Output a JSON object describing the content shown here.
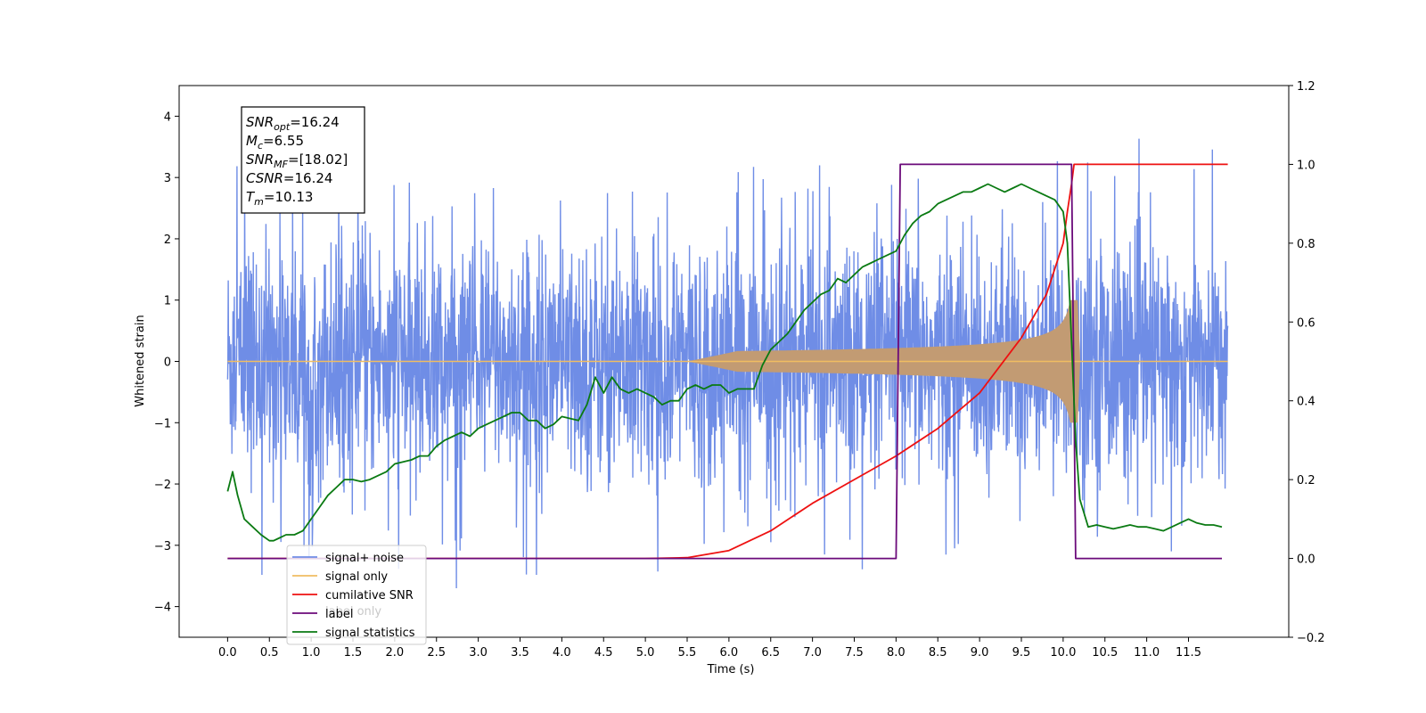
{
  "chart_data": {
    "type": "line",
    "xlabel": "Time (s)",
    "ylabel": "Whitened strain",
    "xlim": [
      -0.58,
      12.7
    ],
    "ylim": [
      -4.5,
      4.5
    ],
    "y2lim": [
      -0.2,
      1.2
    ],
    "x_ticks": [
      "0.0",
      "0.5",
      "1.0",
      "1.5",
      "2.0",
      "2.5",
      "3.0",
      "3.5",
      "4.0",
      "4.5",
      "5.0",
      "5.5",
      "6.0",
      "6.5",
      "7.0",
      "7.5",
      "8.0",
      "8.5",
      "9.0",
      "9.5",
      "10.0",
      "10.5",
      "11.0",
      "11.5"
    ],
    "y_ticks": [
      "4",
      "3",
      "2",
      "1",
      "0",
      "−1",
      "−2",
      "−3",
      "−4"
    ],
    "y2_ticks": [
      "1.2",
      "1.0",
      "0.8",
      "0.6",
      "0.4",
      "0.2",
      "0.0",
      "−0.2"
    ],
    "annotation": [
      {
        "sym": "SNR",
        "sub": "opt",
        "value": "=16.24"
      },
      {
        "sym": "M",
        "sub": "c",
        "value": "=6.55"
      },
      {
        "sym": "SNR",
        "sub": "MF",
        "value": "=[18.02]"
      },
      {
        "sym": "CSNR",
        "sub": "",
        "value": "=16.24"
      },
      {
        "sym": "T",
        "sub": "m",
        "value": "=10.13"
      }
    ],
    "legend": [
      "signal+ noise",
      "signal only",
      "cumilative SNR",
      "label",
      "signal statistics"
    ],
    "legend_ghost": "label only",
    "colors": {
      "signal_noise": "#6f8de6",
      "signal_only": "#f0bd62",
      "signal_only_overlap": "#c29b73",
      "cumulative_snr": "#ee1111",
      "label": "#6b0a7a",
      "statistics": "#0a7a12",
      "ghost_text": "#c8c8c8"
    },
    "signal_noise": {
      "x_range": [
        0.0,
        11.97
      ],
      "sigma": 1.0,
      "typical_peak": 2.7,
      "max": 4.05,
      "min": -3.7
    },
    "signal_only": {
      "x_range": [
        0.0,
        11.97
      ],
      "onset": 5.5,
      "merger": 10.13,
      "peak_amplitude": 1.0
    },
    "cumulative_snr": {
      "axis": "right",
      "x": [
        0.0,
        5.0,
        5.5,
        6.0,
        6.5,
        7.0,
        7.5,
        8.0,
        8.5,
        9.0,
        9.5,
        9.8,
        10.0,
        10.05,
        10.1,
        10.13,
        11.97
      ],
      "y": [
        0.0,
        0.0,
        0.002,
        0.02,
        0.07,
        0.14,
        0.2,
        0.26,
        0.33,
        0.42,
        0.56,
        0.67,
        0.8,
        0.88,
        0.95,
        1.0,
        1.0
      ]
    },
    "label_series": {
      "axis": "right",
      "x": [
        0.0,
        8.0,
        8.05,
        10.1,
        10.15,
        11.9
      ],
      "y": [
        0.0,
        0.0,
        1.0,
        1.0,
        0.0,
        0.0
      ]
    },
    "signal_statistics": {
      "axis": "right",
      "x": [
        0.0,
        0.06,
        0.12,
        0.2,
        0.3,
        0.4,
        0.5,
        0.55,
        0.6,
        0.7,
        0.8,
        0.9,
        1.0,
        1.1,
        1.2,
        1.3,
        1.4,
        1.5,
        1.6,
        1.7,
        1.8,
        1.9,
        2.0,
        2.1,
        2.2,
        2.3,
        2.4,
        2.5,
        2.6,
        2.7,
        2.8,
        2.9,
        3.0,
        3.1,
        3.2,
        3.3,
        3.4,
        3.5,
        3.6,
        3.7,
        3.8,
        3.9,
        4.0,
        4.1,
        4.2,
        4.3,
        4.4,
        4.5,
        4.6,
        4.7,
        4.8,
        4.9,
        5.0,
        5.1,
        5.2,
        5.3,
        5.4,
        5.5,
        5.6,
        5.7,
        5.8,
        5.9,
        6.0,
        6.1,
        6.2,
        6.3,
        6.4,
        6.5,
        6.6,
        6.7,
        6.8,
        6.9,
        7.0,
        7.1,
        7.2,
        7.3,
        7.4,
        7.5,
        7.6,
        7.7,
        7.8,
        7.9,
        8.0,
        8.1,
        8.2,
        8.3,
        8.4,
        8.5,
        8.6,
        8.7,
        8.8,
        8.9,
        9.0,
        9.1,
        9.2,
        9.3,
        9.4,
        9.5,
        9.6,
        9.7,
        9.8,
        9.9,
        10.0,
        10.05,
        10.1,
        10.15,
        10.2,
        10.3,
        10.4,
        10.5,
        10.6,
        10.7,
        10.8,
        10.9,
        11.0,
        11.1,
        11.2,
        11.3,
        11.4,
        11.5,
        11.6,
        11.7,
        11.8,
        11.9
      ],
      "y": [
        0.17,
        0.22,
        0.16,
        0.1,
        0.08,
        0.06,
        0.045,
        0.045,
        0.05,
        0.06,
        0.06,
        0.07,
        0.1,
        0.13,
        0.16,
        0.18,
        0.2,
        0.2,
        0.195,
        0.2,
        0.21,
        0.22,
        0.24,
        0.245,
        0.25,
        0.26,
        0.26,
        0.285,
        0.3,
        0.31,
        0.32,
        0.31,
        0.33,
        0.34,
        0.35,
        0.36,
        0.37,
        0.37,
        0.35,
        0.35,
        0.33,
        0.34,
        0.36,
        0.355,
        0.35,
        0.39,
        0.46,
        0.42,
        0.46,
        0.43,
        0.42,
        0.43,
        0.42,
        0.41,
        0.39,
        0.4,
        0.4,
        0.43,
        0.44,
        0.43,
        0.44,
        0.44,
        0.42,
        0.43,
        0.43,
        0.43,
        0.49,
        0.53,
        0.55,
        0.57,
        0.6,
        0.63,
        0.65,
        0.67,
        0.68,
        0.71,
        0.7,
        0.72,
        0.74,
        0.75,
        0.76,
        0.77,
        0.78,
        0.82,
        0.85,
        0.87,
        0.88,
        0.9,
        0.91,
        0.92,
        0.93,
        0.93,
        0.94,
        0.95,
        0.94,
        0.93,
        0.94,
        0.95,
        0.94,
        0.93,
        0.92,
        0.91,
        0.88,
        0.8,
        0.55,
        0.3,
        0.15,
        0.08,
        0.085,
        0.08,
        0.075,
        0.08,
        0.085,
        0.08,
        0.08,
        0.075,
        0.07,
        0.08,
        0.09,
        0.1,
        0.09,
        0.085,
        0.085,
        0.08
      ]
    }
  }
}
